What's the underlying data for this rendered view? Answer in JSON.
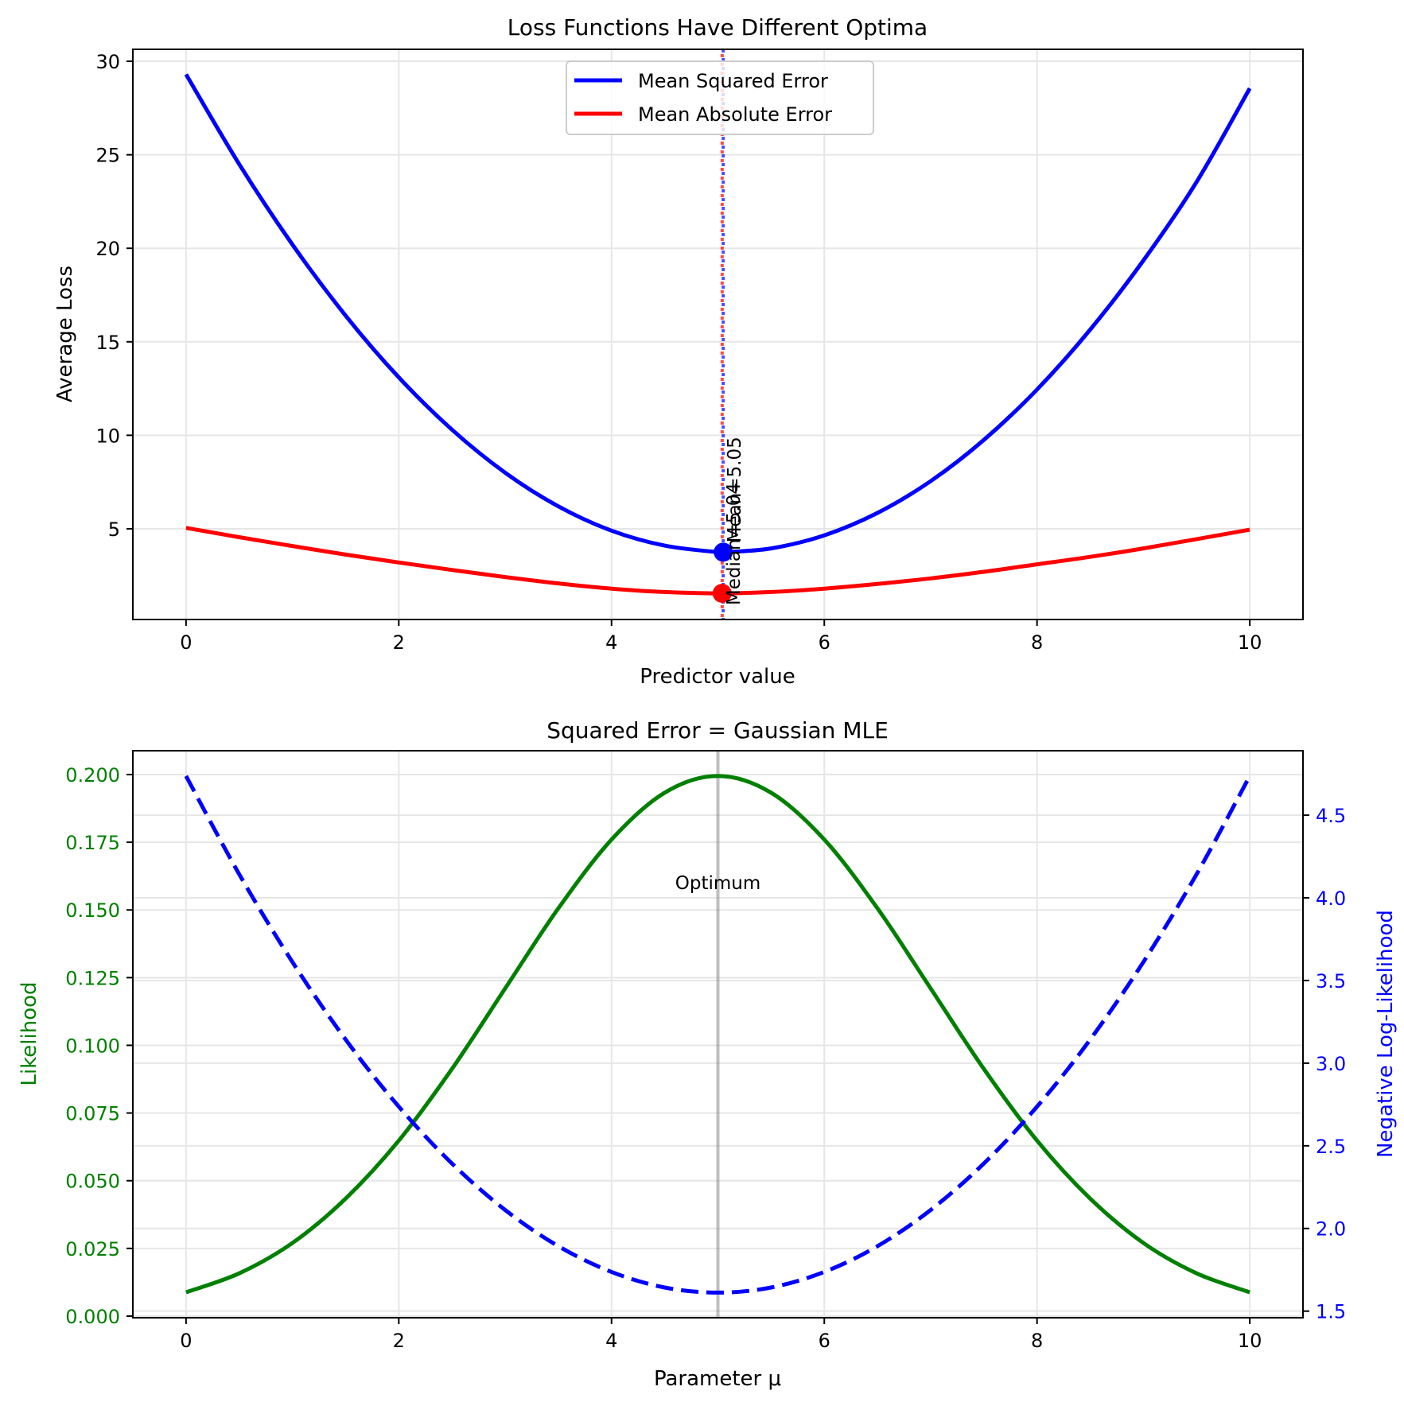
{
  "chart_data": [
    {
      "type": "line",
      "title": "Loss Functions Have Different Optima",
      "xlabel": "Predictor value",
      "ylabel": "Average Loss",
      "xlim": [
        -0.5,
        10.5
      ],
      "ylim": [
        0.15,
        30.64
      ],
      "xticks": [
        0,
        2,
        4,
        6,
        8,
        10
      ],
      "xtick_labels": [
        "0",
        "2",
        "4",
        "6",
        "8",
        "10"
      ],
      "yticks": [
        5,
        10,
        15,
        20,
        25,
        30
      ],
      "ytick_labels": [
        "5",
        "10",
        "15",
        "20",
        "25",
        "30"
      ],
      "grid": true,
      "legend_position": "upper-center",
      "series": [
        {
          "name": "Mean Squared Error",
          "color": "#0000ff",
          "x": [
            0,
            0.5,
            1,
            1.5,
            2,
            2.5,
            3,
            3.5,
            4,
            4.5,
            5,
            5.05,
            5.5,
            6,
            6.5,
            7,
            7.5,
            8,
            8.5,
            9,
            9.5,
            10
          ],
          "y": [
            29.3,
            24.5,
            20.2,
            16.4,
            13.1,
            10.3,
            8.0,
            6.2,
            4.9,
            4.1,
            3.75,
            3.75,
            3.95,
            4.65,
            5.85,
            7.55,
            9.75,
            12.45,
            15.65,
            19.35,
            23.55,
            28.55
          ]
        },
        {
          "name": "Mean Absolute Error",
          "color": "#ff0000",
          "x": [
            0,
            0.5,
            1,
            1.5,
            2,
            2.5,
            3,
            3.5,
            4,
            4.5,
            5.04,
            5.5,
            6,
            6.5,
            7,
            7.5,
            8,
            8.5,
            9,
            9.5,
            10
          ],
          "y": [
            5.05,
            4.55,
            4.08,
            3.62,
            3.2,
            2.8,
            2.42,
            2.08,
            1.8,
            1.62,
            1.55,
            1.62,
            1.8,
            2.05,
            2.35,
            2.7,
            3.1,
            3.5,
            3.95,
            4.45,
            4.95
          ]
        }
      ],
      "markers": [
        {
          "name": "MSE minimum",
          "x": 5.05,
          "y": 3.75,
          "color": "#0000ff"
        },
        {
          "name": "MAE minimum",
          "x": 5.04,
          "y": 1.55,
          "color": "#ff0000"
        }
      ],
      "vlines": [
        {
          "x": 5.05,
          "color": "#0000ff",
          "style": "dotted"
        },
        {
          "x": 5.04,
          "color": "#ff0000",
          "style": "dotted"
        }
      ],
      "annotations": [
        {
          "text": "Mean=5.05",
          "x": 5.05,
          "y": 3.75,
          "rotation": 90
        },
        {
          "text": "Median=5.04",
          "x": 5.04,
          "y": 1.55,
          "rotation": 90
        }
      ]
    },
    {
      "type": "line",
      "title": "Squared Error = Gaussian MLE",
      "xlabel": "Parameter μ",
      "ylabel_left": "Likelihood",
      "ylabel_right": "Negative Log-Likelihood",
      "xlim": [
        -0.5,
        10.5
      ],
      "ylim_left": [
        -0.0006,
        0.2088
      ],
      "ylim_right": [
        1.46,
        4.89
      ],
      "xticks": [
        0,
        2,
        4,
        6,
        8,
        10
      ],
      "xtick_labels": [
        "0",
        "2",
        "4",
        "6",
        "8",
        "10"
      ],
      "yticks_left": [
        0.0,
        0.025,
        0.05,
        0.075,
        0.1,
        0.125,
        0.15,
        0.175,
        0.2
      ],
      "ytick_labels_left": [
        "0.000",
        "0.025",
        "0.050",
        "0.075",
        "0.100",
        "0.125",
        "0.150",
        "0.175",
        "0.200"
      ],
      "yticks_right": [
        1.5,
        2.0,
        2.5,
        3.0,
        3.5,
        4.0,
        4.5
      ],
      "ytick_labels_right": [
        "1.5",
        "2.0",
        "2.5",
        "3.0",
        "3.5",
        "4.0",
        "4.5"
      ],
      "grid": true,
      "left_color": "#008000",
      "right_color": "#0000ff",
      "series": [
        {
          "name": "Likelihood",
          "axis": "left",
          "color": "#008000",
          "style": "solid",
          "x": [
            0,
            0.5,
            1,
            1.5,
            2,
            2.5,
            3,
            3.5,
            4,
            4.5,
            5,
            5.5,
            6,
            6.5,
            7,
            7.5,
            8,
            8.5,
            9,
            9.5,
            10
          ],
          "y": [
            0.0088,
            0.0158,
            0.027,
            0.0434,
            0.0648,
            0.0913,
            0.121,
            0.1506,
            0.176,
            0.1933,
            0.1995,
            0.1933,
            0.176,
            0.1506,
            0.121,
            0.0913,
            0.0648,
            0.0434,
            0.027,
            0.0158,
            0.0088
          ]
        },
        {
          "name": "Negative Log-Likelihood",
          "axis": "right",
          "color": "#0000ff",
          "style": "dashed",
          "x": [
            0,
            0.5,
            1,
            1.5,
            2,
            2.5,
            3,
            3.5,
            4,
            4.5,
            5,
            5.5,
            6,
            6.5,
            7,
            7.5,
            8,
            8.5,
            9,
            9.5,
            10
          ],
          "y": [
            4.737,
            4.143,
            3.612,
            3.143,
            2.737,
            2.393,
            2.112,
            1.893,
            1.737,
            1.643,
            1.612,
            1.643,
            1.737,
            1.893,
            2.112,
            2.393,
            2.737,
            3.143,
            3.612,
            4.143,
            4.737
          ]
        }
      ],
      "vlines": [
        {
          "x": 5.0,
          "color": "#808080",
          "alpha": 0.5
        }
      ],
      "annotations": [
        {
          "text": "Optimum",
          "x": 5.0,
          "y": 0.16
        }
      ]
    }
  ]
}
